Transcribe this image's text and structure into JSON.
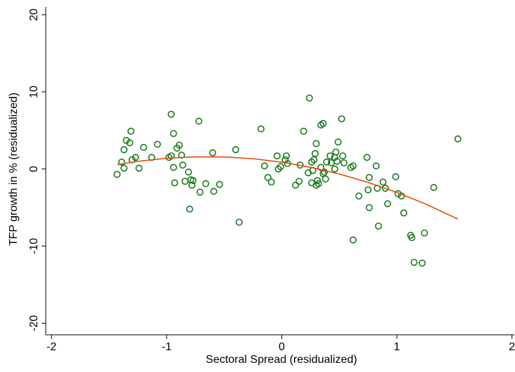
{
  "chart_data": {
    "type": "scatter",
    "x_label": "Sectoral Spread (residualized)",
    "y_label": "TFP growth in % (residualized)",
    "xlim": [
      -2.05,
      2.02
    ],
    "ylim": [
      -21.5,
      21
    ],
    "xticks": [
      -2,
      -1,
      0,
      1,
      2
    ],
    "yticks": [
      -20,
      -10,
      0,
      10,
      20
    ],
    "series": [
      {
        "color": "#1a7a1a",
        "x": [
          -1.43,
          -1.39,
          -1.37,
          -1.37,
          -1.35,
          -1.32,
          -1.31,
          -1.3,
          -1.27,
          -1.24,
          -1.2,
          -1.13,
          -1.08,
          -0.98,
          -0.96,
          -0.96,
          -0.94,
          -0.94,
          -0.93,
          -0.91,
          -0.89,
          -0.87,
          -0.86,
          -0.84,
          -0.81,
          -0.8,
          -0.79,
          -0.78,
          -0.77,
          -0.72,
          -0.71,
          -0.66,
          -0.6,
          -0.59,
          -0.54,
          -0.4,
          -0.37,
          -0.18,
          -0.15,
          -0.12,
          -0.09,
          -0.04,
          -0.03,
          -0.01,
          0.03,
          0.04,
          0.05,
          0.12,
          0.15,
          0.16,
          0.19,
          0.23,
          0.24,
          0.26,
          0.26,
          0.27,
          0.28,
          0.29,
          0.3,
          0.3,
          0.31,
          0.32,
          0.34,
          0.34,
          0.36,
          0.36,
          0.37,
          0.38,
          0.39,
          0.42,
          0.43,
          0.46,
          0.46,
          0.47,
          0.48,
          0.49,
          0.52,
          0.53,
          0.54,
          0.6,
          0.62,
          0.62,
          0.67,
          0.74,
          0.75,
          0.76,
          0.76,
          0.82,
          0.83,
          0.84,
          0.88,
          0.9,
          0.92,
          0.99,
          1.01,
          1.04,
          1.06,
          1.12,
          1.13,
          1.15,
          1.22,
          1.24,
          1.32,
          1.53
        ],
        "values": [
          -0.7,
          0.9,
          0.1,
          2.5,
          3.7,
          3.4,
          4.9,
          1.2,
          1.5,
          0.1,
          2.8,
          1.5,
          3.2,
          1.5,
          7.1,
          1.7,
          4.6,
          0.2,
          -1.8,
          2.7,
          3.1,
          1.8,
          0.5,
          -1.6,
          -0.4,
          -5.2,
          -1.4,
          -2.1,
          -1.5,
          6.2,
          -3.0,
          -1.9,
          2.1,
          -2.9,
          -2.0,
          2.5,
          -6.9,
          5.2,
          0.4,
          -1.1,
          -1.7,
          1.7,
          0.0,
          0.3,
          1.2,
          1.7,
          0.7,
          -2.1,
          -1.6,
          0.5,
          4.9,
          -0.5,
          9.2,
          -1.8,
          0.9,
          -0.2,
          1.2,
          2.0,
          3.3,
          -2.1,
          -1.5,
          -1.9,
          0.2,
          5.7,
          5.9,
          -0.6,
          -0.4,
          -1.3,
          0.9,
          1.7,
          0.8,
          1.5,
          0.0,
          2.2,
          1.0,
          3.5,
          6.5,
          1.7,
          0.8,
          0.2,
          0.4,
          -9.2,
          -3.5,
          1.5,
          -2.7,
          -5.0,
          -1.1,
          0.4,
          -2.5,
          -7.4,
          -1.7,
          -2.5,
          -4.5,
          -1.0,
          -3.2,
          -3.5,
          -5.7,
          -8.6,
          -8.9,
          -12.1,
          -12.2,
          -8.3,
          -2.4,
          3.9
        ]
      }
    ],
    "fit": {
      "color": "#e8490f",
      "x": [
        -1.43,
        -1.25,
        -1,
        -0.75,
        -0.5,
        -0.25,
        0,
        0.25,
        0.5,
        0.75,
        1,
        1.25,
        1.53
      ],
      "values": [
        0.56,
        0.99,
        1.39,
        1.58,
        1.56,
        1.33,
        0.88,
        0.22,
        -0.65,
        -1.74,
        -3.04,
        -4.54,
        -6.5
      ]
    }
  }
}
